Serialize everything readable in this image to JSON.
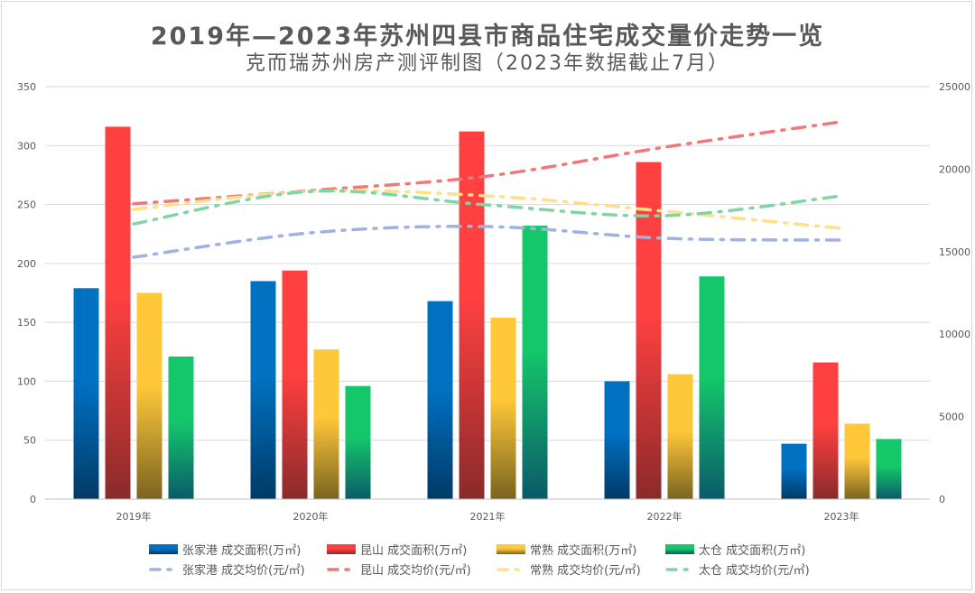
{
  "chart_data": {
    "type": "bar",
    "title": "2019年—2023年苏州四县市商品住宅成交量价走势一览",
    "subtitle": "克而瑞苏州房产测评制图（2023年数据截止7月）",
    "categories": [
      "2019年",
      "2020年",
      "2021年",
      "2022年",
      "2023年"
    ],
    "y_left": {
      "range": [
        0,
        350
      ],
      "ticks": [
        0,
        50,
        100,
        150,
        200,
        250,
        300,
        350
      ]
    },
    "y_right": {
      "range": [
        0,
        25000
      ],
      "ticks": [
        0,
        5000,
        10000,
        15000,
        20000,
        25000
      ]
    },
    "grid": true,
    "legend_position": "bottom",
    "bar_series": [
      {
        "name": "张家港 成交面积(万㎡)",
        "color": "#0070c0",
        "values": [
          179,
          185,
          168,
          100,
          47
        ]
      },
      {
        "name": "昆山 成交面积(万㎡)",
        "color": "#ff4040",
        "values": [
          316,
          194,
          312,
          286,
          116
        ]
      },
      {
        "name": "常熟 成交面积(万㎡)",
        "color": "#ffc839",
        "values": [
          175,
          127,
          154,
          106,
          64
        ]
      },
      {
        "name": "太仓 成交面积(万㎡)",
        "color": "#14c86a",
        "values": [
          121,
          96,
          232,
          189,
          51
        ]
      }
    ],
    "line_series": [
      {
        "name": "张家港 成交均价(元/㎡)",
        "color": "#9fb2e0",
        "values": [
          14660,
          16140,
          16520,
          15810,
          15700
        ]
      },
      {
        "name": "昆山 成交均价(元/㎡)",
        "color": "#f07878",
        "values": [
          17900,
          18700,
          19580,
          21330,
          22870
        ]
      },
      {
        "name": "常熟 成交均价(元/㎡)",
        "color": "#ffe08a",
        "values": [
          17560,
          18650,
          18380,
          17450,
          16410
        ]
      },
      {
        "name": "太仓 成交均价(元/㎡)",
        "color": "#7fd6a4",
        "values": [
          16680,
          18650,
          17830,
          17180,
          18380
        ]
      }
    ]
  }
}
